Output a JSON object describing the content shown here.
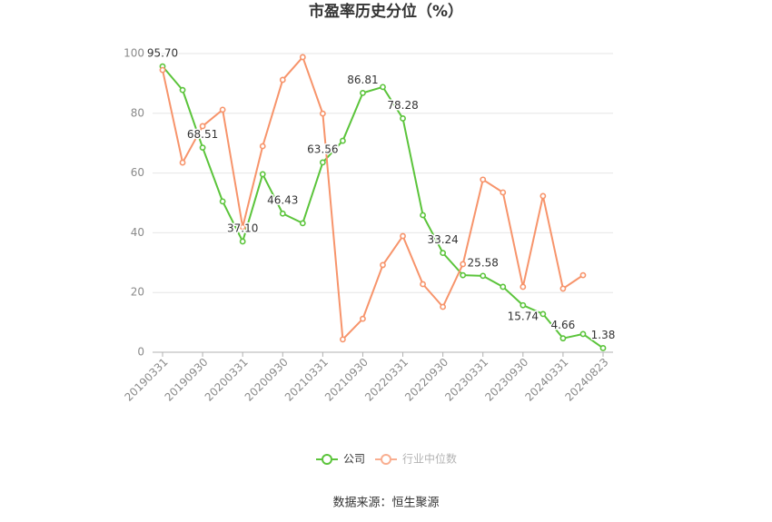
{
  "source": "数据来源：恒生聚源",
  "colors": {
    "company": "#5bc43b",
    "industry": "#f7946b",
    "grid": "#e6e6e6",
    "axis": "#b0b0b0"
  },
  "chart_data": {
    "type": "line",
    "title": "市盈率历史分位（%）",
    "categories": [
      "20190331",
      "",
      "20190930",
      "",
      "20200331",
      "",
      "20200930",
      "",
      "20210331",
      "",
      "20210930",
      "",
      "20220331",
      "",
      "20220930",
      "",
      "20230331",
      "",
      "20230930",
      "",
      "20240331",
      "",
      "20240823"
    ],
    "ylim": [
      0,
      100
    ],
    "yticks": [
      0,
      20,
      40,
      60,
      80,
      100
    ],
    "grid": true,
    "legend": "bottom-center",
    "series": [
      {
        "name": "公司",
        "color": "#5bc43b",
        "values": [
          95.7,
          87.8,
          68.51,
          50.5,
          37.1,
          59.6,
          46.43,
          43.2,
          63.56,
          70.8,
          86.81,
          88.8,
          78.28,
          45.9,
          33.24,
          25.8,
          25.58,
          21.9,
          15.74,
          12.8,
          4.66,
          6.1,
          1.38
        ],
        "labels": [
          "95.70",
          "",
          "68.51",
          "",
          "37.10",
          "",
          "46.43",
          "",
          "63.56",
          "",
          "86.81",
          "",
          "78.28",
          "",
          "33.24",
          "",
          "25.58",
          "",
          "15.74",
          "",
          "4.66",
          "",
          "1.38"
        ]
      },
      {
        "name": "行业中位数",
        "color": "#f7946b",
        "values": [
          94.5,
          63.5,
          75.7,
          81.2,
          41.9,
          69.0,
          91.2,
          98.8,
          79.9,
          4.3,
          11.2,
          29.2,
          38.9,
          22.8,
          15.2,
          29.5,
          57.8,
          53.5,
          21.9,
          52.3,
          21.3,
          25.8,
          null
        ]
      }
    ]
  }
}
